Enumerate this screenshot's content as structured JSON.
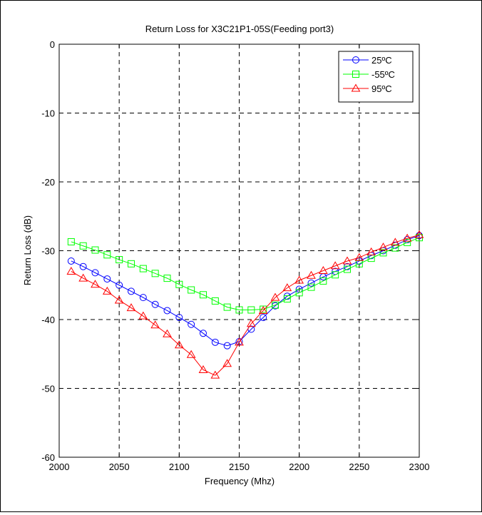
{
  "chart_data": {
    "type": "line",
    "title": "Return Loss for X3C21P1-05S(Feeding port3)",
    "xlabel": "Frequency (Mhz)",
    "ylabel": "Return Loss (dB)",
    "xlim": [
      2000,
      2300
    ],
    "ylim": [
      -60,
      0
    ],
    "xticks": [
      2000,
      2050,
      2100,
      2150,
      2200,
      2250,
      2300
    ],
    "yticks": [
      0,
      -10,
      -20,
      -30,
      -40,
      -50,
      -60
    ],
    "grid": true,
    "legend_position": "top-right",
    "x": [
      2010,
      2020,
      2030,
      2040,
      2050,
      2060,
      2070,
      2080,
      2090,
      2100,
      2110,
      2120,
      2130,
      2140,
      2150,
      2160,
      2170,
      2180,
      2190,
      2200,
      2210,
      2220,
      2230,
      2240,
      2250,
      2260,
      2270,
      2280,
      2290,
      2300
    ],
    "series": [
      {
        "name": "25ºC",
        "color": "#0000ff",
        "marker": "circle",
        "values": [
          -31.5,
          -32.3,
          -33.2,
          -34.1,
          -35.0,
          -35.9,
          -36.8,
          -37.8,
          -38.7,
          -39.7,
          -40.7,
          -42.0,
          -43.3,
          -43.8,
          -43.2,
          -41.4,
          -39.7,
          -38.0,
          -36.6,
          -35.6,
          -34.7,
          -33.8,
          -33.0,
          -32.3,
          -31.5,
          -30.7,
          -30.0,
          -29.2,
          -28.4,
          -27.8
        ]
      },
      {
        "name": "-55ºC",
        "color": "#00ff00",
        "marker": "square",
        "values": [
          -28.7,
          -29.3,
          -29.9,
          -30.6,
          -31.3,
          -31.9,
          -32.6,
          -33.3,
          -34.0,
          -34.9,
          -35.7,
          -36.4,
          -37.3,
          -38.2,
          -38.6,
          -38.6,
          -38.5,
          -37.9,
          -37.0,
          -36.1,
          -35.3,
          -34.4,
          -33.5,
          -32.7,
          -31.9,
          -31.1,
          -30.3,
          -29.6,
          -28.8,
          -28.1
        ]
      },
      {
        "name": "95ºC",
        "color": "#ff0000",
        "marker": "triangle",
        "values": [
          -33.0,
          -34.0,
          -34.9,
          -35.9,
          -37.2,
          -38.3,
          -39.5,
          -40.8,
          -42.1,
          -43.7,
          -45.1,
          -47.3,
          -48.1,
          -46.4,
          -43.3,
          -40.6,
          -38.7,
          -36.8,
          -35.4,
          -34.3,
          -33.6,
          -32.9,
          -32.2,
          -31.5,
          -31.0,
          -30.2,
          -29.5,
          -28.8,
          -28.2,
          -27.7
        ]
      }
    ]
  }
}
